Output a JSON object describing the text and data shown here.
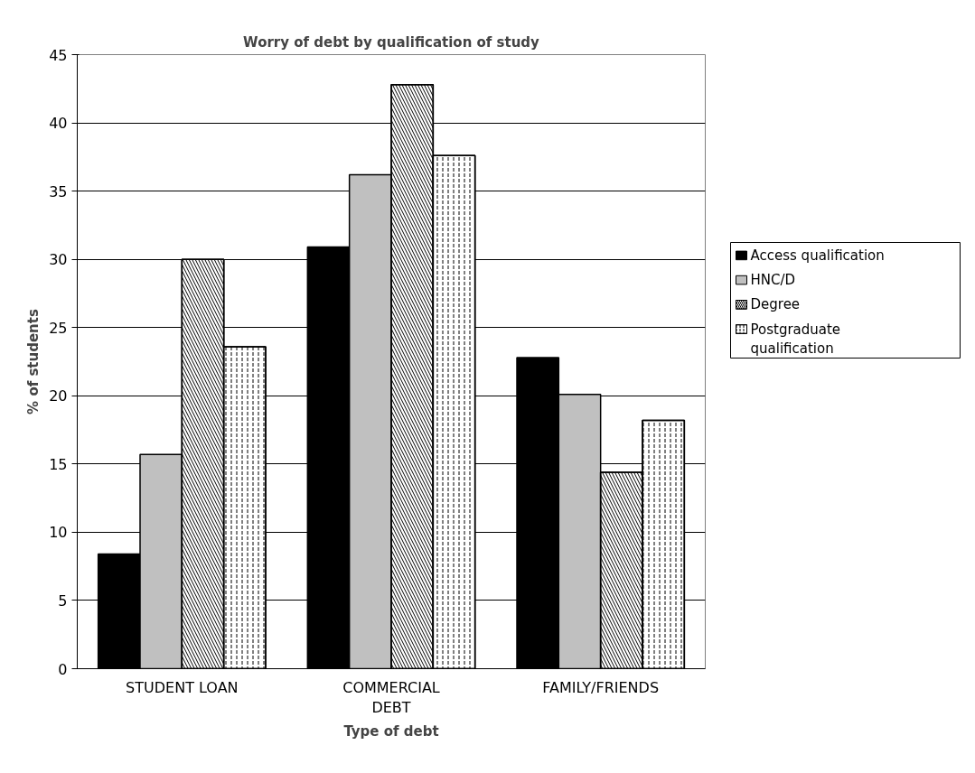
{
  "chart_data": {
    "type": "bar",
    "title": "Worry of debt by qualification of study",
    "xlabel": "Type of debt",
    "ylabel": "% of students",
    "categories": [
      "STUDENT LOAN",
      "COMMERCIAL DEBT",
      "FAMILY/FRIENDS"
    ],
    "series": [
      {
        "name": "Access qualification",
        "color": "#000000",
        "values": [
          8.4,
          30.9,
          22.8
        ]
      },
      {
        "name": "HNC/D",
        "color": "#c0c0c0",
        "values": [
          15.7,
          36.2,
          20.1
        ]
      },
      {
        "name": "Degree",
        "color": "#ffffff",
        "values": [
          30.0,
          42.8,
          14.4
        ]
      },
      {
        "name": "Postgraduate qualification",
        "color": "#ffffff",
        "values": [
          23.6,
          37.6,
          18.2
        ]
      }
    ],
    "ylim": [
      0,
      45
    ],
    "yticks": [
      0,
      5,
      10,
      15,
      20,
      25,
      30,
      35,
      40,
      45
    ],
    "grid": "y",
    "legend": "right"
  }
}
